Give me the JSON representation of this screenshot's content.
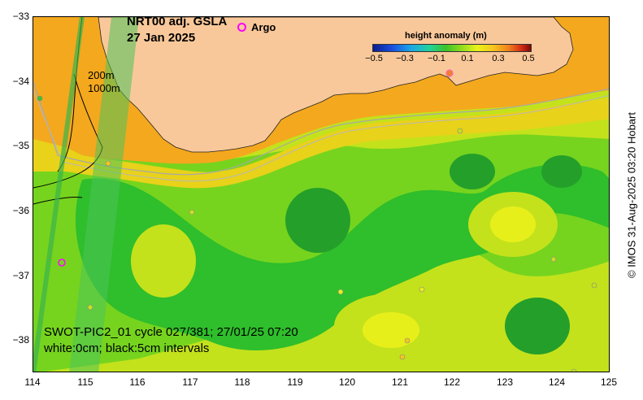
{
  "title": {
    "line1": "NRT00 adj. GSLA",
    "line2": "27 Jan 2025"
  },
  "legend": {
    "argo_label": "Argo",
    "argo_color": "#ff00ff"
  },
  "colorbar": {
    "title": "height anomaly (m)",
    "ticks": [
      "−0.5",
      "−0.3",
      "−0.1",
      "0.1",
      "0.3",
      "0.5"
    ],
    "min": -0.5,
    "max": 0.5
  },
  "depth_labels": {
    "shallow": "200m",
    "deep": "1000m"
  },
  "swot": {
    "pass_label": "SWOT-PIC2_01 cycle 027/381; 27/01/25 07:20",
    "contour_label": "white:0cm; black:5cm intervals"
  },
  "credit": "© IMOS 31-Aug-2025 03:20 Hobart",
  "axes": {
    "x_ticks": [
      "114",
      "115",
      "116",
      "117",
      "118",
      "119",
      "120",
      "121",
      "122",
      "123",
      "124",
      "125"
    ],
    "y_ticks": [
      "−33",
      "−34",
      "−35",
      "−36",
      "−37",
      "−38"
    ],
    "x_range": [
      114,
      125
    ],
    "y_range": [
      -38.5,
      -33
    ]
  },
  "colors": {
    "land": "#f9c89a",
    "coast_band": "#f4a81e",
    "ocean_base": "#c3e21c",
    "low_anomaly": "#2fbe2c",
    "mid_anomaly": "#76d41e",
    "high_anomaly": "#e7ef1a"
  }
}
